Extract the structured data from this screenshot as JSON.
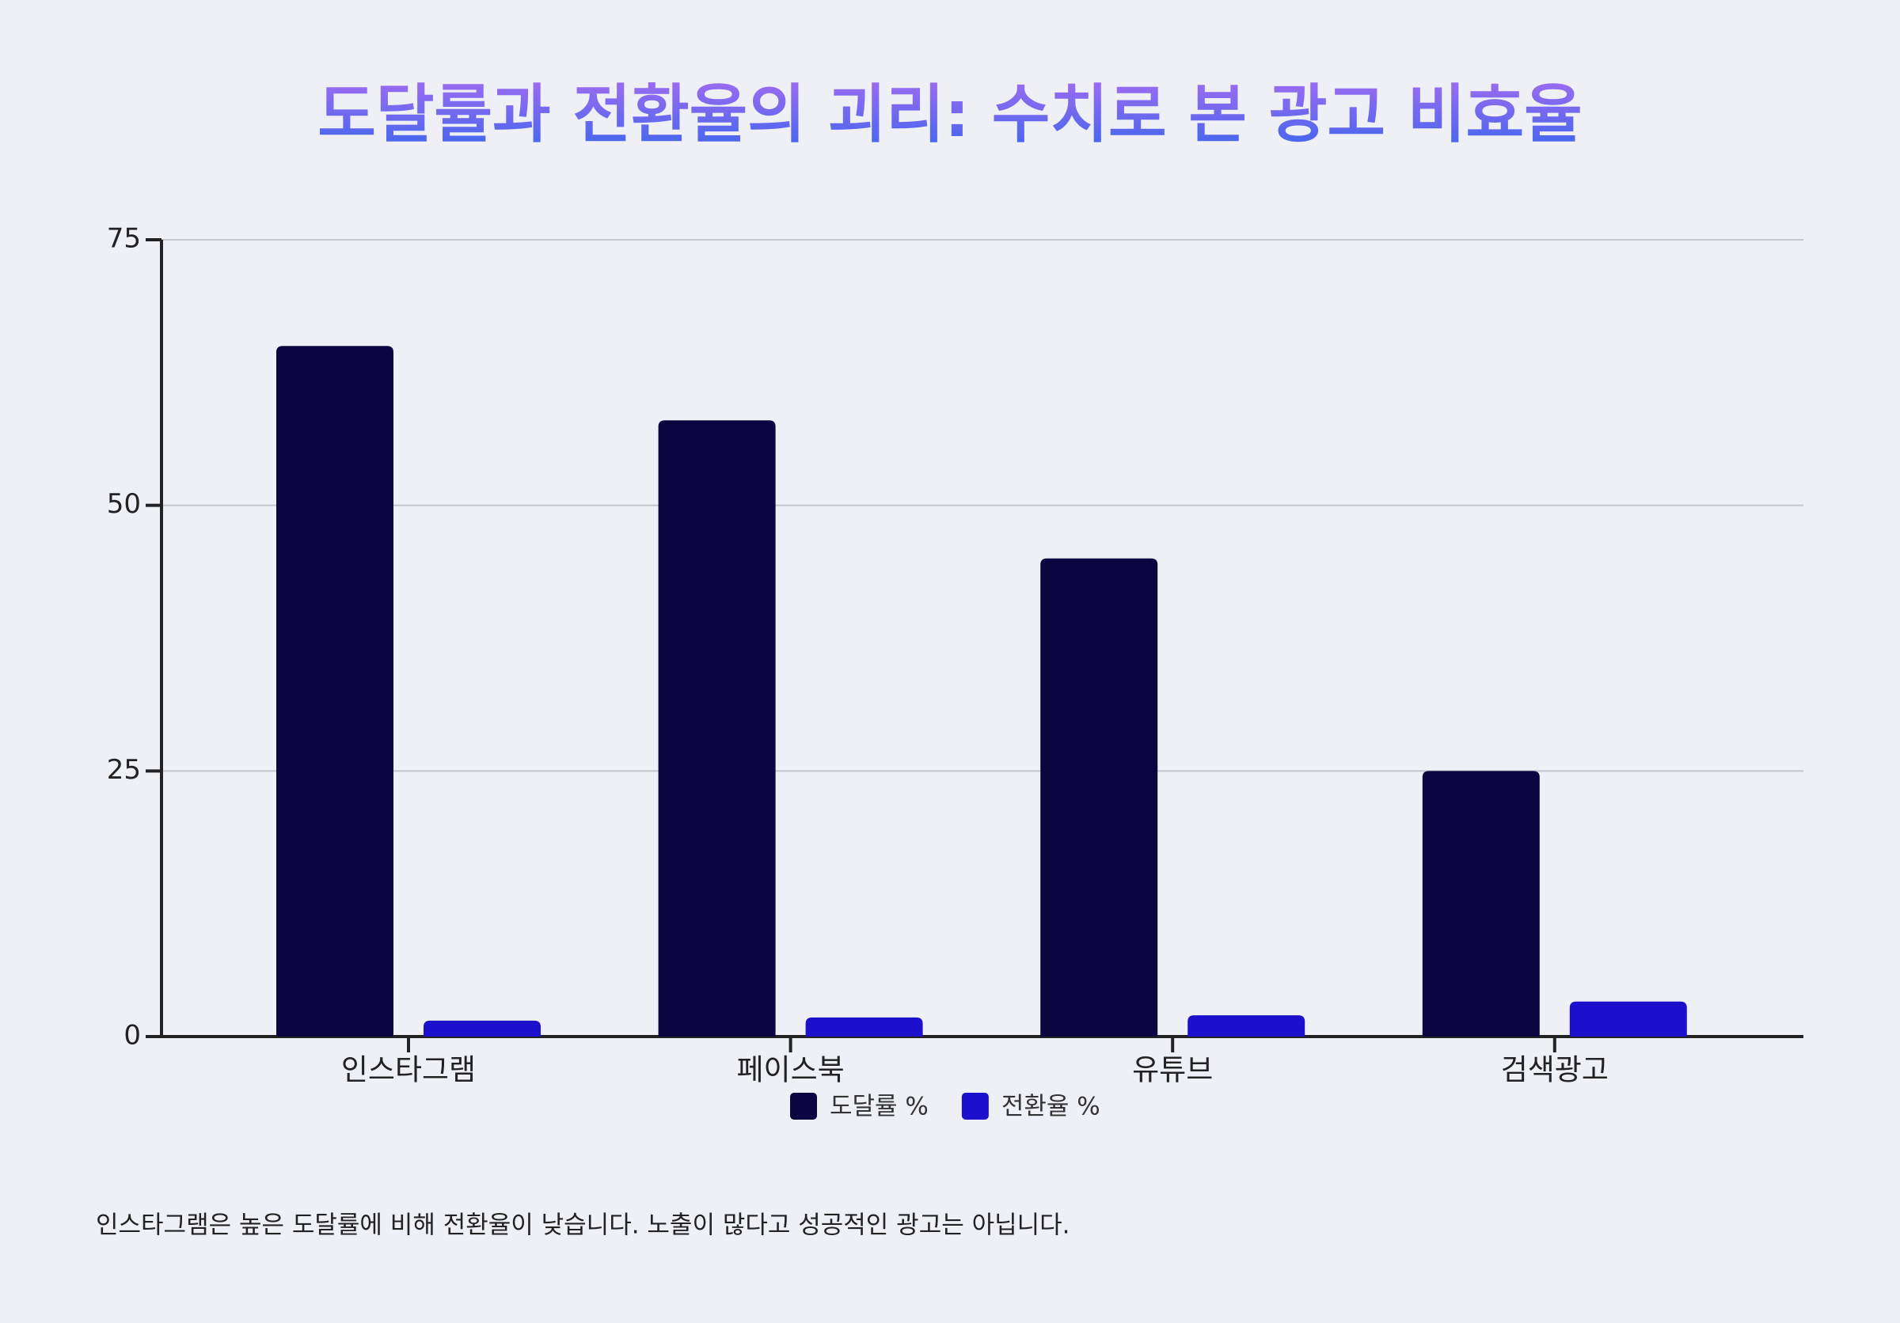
{
  "chart_data": {
    "type": "bar",
    "title": "도달률과 전환율의 괴리: 수치로 본 광고 비효율",
    "categories": [
      "인스타그램",
      "페이스북",
      "유튜브",
      "검색광고"
    ],
    "series": [
      {
        "name": "도달률 %",
        "color": "#0b0540",
        "values": [
          65,
          58,
          45,
          25
        ]
      },
      {
        "name": "전환율 %",
        "color": "#1c10cc",
        "values": [
          1.5,
          1.8,
          2,
          3.3
        ]
      }
    ],
    "ylim": [
      0,
      75
    ],
    "yticks": [
      0,
      25,
      50,
      75
    ],
    "grid": true,
    "legend": "bottom",
    "note": "인스타그램은 높은 도달률에 비해 전환율이 낮습니다. 노출이 많다고 성공적인 광고는 아닙니다."
  }
}
